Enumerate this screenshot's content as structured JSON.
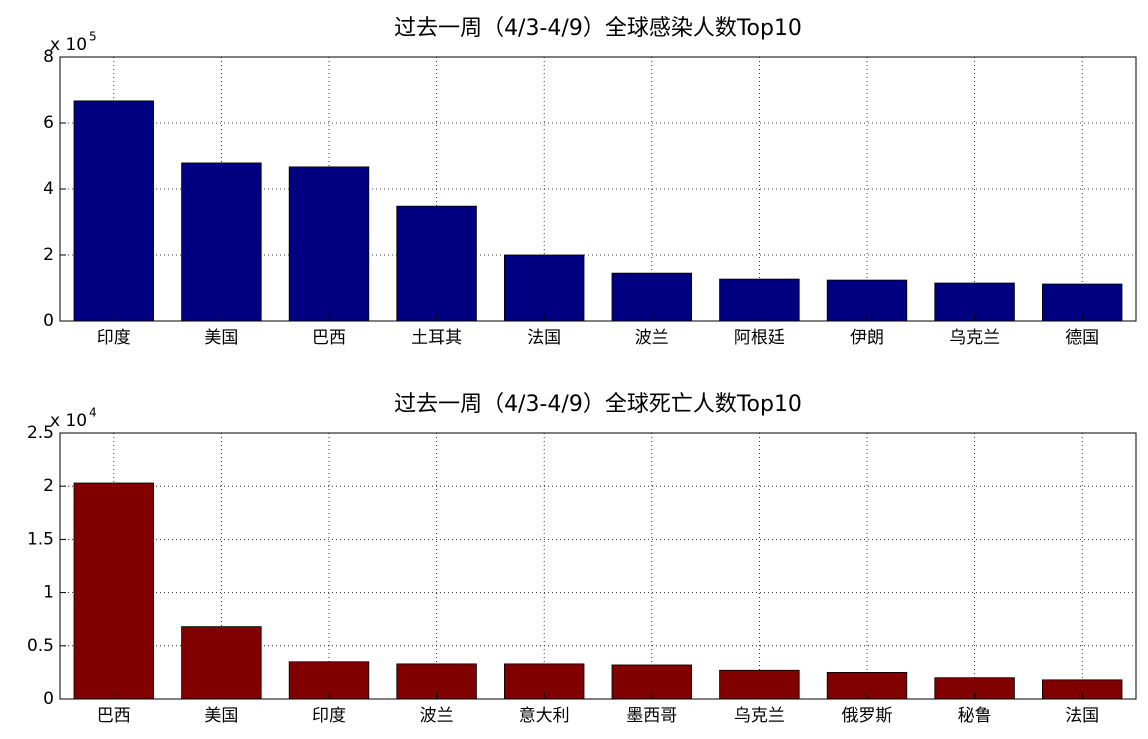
{
  "chart_data": [
    {
      "type": "bar",
      "title": "过去一周（4/3-4/9）全球感染人数Top10",
      "y_exponent_base": "x 10",
      "y_exponent": "5",
      "categories": [
        "印度",
        "美国",
        "巴西",
        "土耳其",
        "法国",
        "波兰",
        "阿根廷",
        "伊朗",
        "乌克兰",
        "德国"
      ],
      "values": [
        6.67,
        4.79,
        4.67,
        3.48,
        2.0,
        1.45,
        1.27,
        1.24,
        1.15,
        1.12
      ],
      "color": "#000080",
      "ylim": [
        0,
        8
      ],
      "yticks": [
        0,
        2,
        4,
        6,
        8
      ],
      "grid": true
    },
    {
      "type": "bar",
      "title": "过去一周（4/3-4/9）全球死亡人数Top10",
      "y_exponent_base": "x 10",
      "y_exponent": "4",
      "categories": [
        "巴西",
        "美国",
        "印度",
        "波兰",
        "意大利",
        "墨西哥",
        "乌克兰",
        "俄罗斯",
        "秘鲁",
        "法国"
      ],
      "values": [
        2.03,
        0.68,
        0.35,
        0.33,
        0.33,
        0.32,
        0.27,
        0.25,
        0.2,
        0.18
      ],
      "color": "#800000",
      "ylim": [
        0,
        2.5
      ],
      "yticks": [
        0,
        0.5,
        1,
        1.5,
        2,
        2.5
      ],
      "grid": true
    }
  ]
}
